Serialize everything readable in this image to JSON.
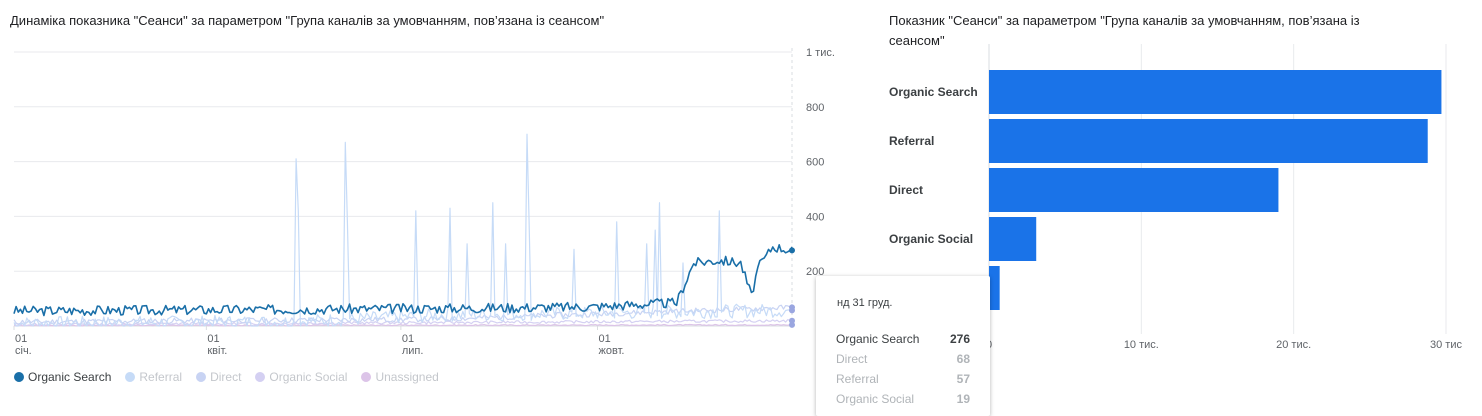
{
  "left_chart": {
    "title": "Динаміка показника \"Сеанси\" за параметром \"Група каналів за умовчанням, пов’язана із сеансом\""
  },
  "right_chart": {
    "title": "Показник \"Сеанси\" за параметром \"Група каналів за умовчанням, пов’язана із сеансом\""
  },
  "legend": [
    {
      "name": "Organic Search",
      "color": "#1a6fa8"
    },
    {
      "name": "Referral",
      "color": "#c6dbf7"
    },
    {
      "name": "Direct",
      "color": "#c8d3f3"
    },
    {
      "name": "Organic Social",
      "color": "#d4d0f2"
    },
    {
      "name": "Unassigned",
      "color": "#dcc4e8"
    }
  ],
  "tooltip": {
    "date": "нд 31 груд.",
    "rows": [
      {
        "label": "Organic Search",
        "value": "276"
      },
      {
        "label": "Direct",
        "value": "68"
      },
      {
        "label": "Referral",
        "value": "57"
      },
      {
        "label": "Organic Social",
        "value": "19"
      }
    ]
  },
  "chart_data": [
    {
      "type": "line",
      "title": "Динаміка показника \"Сеанси\" за параметром \"Група каналів за умовчанням, пов’язана із сеансом\"",
      "y_ticks": [
        "200",
        "400",
        "600",
        "800",
        "1 тис."
      ],
      "y_tick_values": [
        200,
        400,
        600,
        800,
        1000
      ],
      "ylim": [
        0,
        1000
      ],
      "x_ticks": [
        {
          "day": "01",
          "month": "січ."
        },
        {
          "day": "01",
          "month": "квіт."
        },
        {
          "day": "01",
          "month": "лип."
        },
        {
          "day": "01",
          "month": "жовт."
        }
      ],
      "x_tick_day_index": [
        0,
        90,
        181,
        273
      ],
      "num_days": 365,
      "series": [
        {
          "name": "Organic Search",
          "color": "#1a6fa8",
          "base": [
            [
              0,
              55
            ],
            [
              120,
              60
            ],
            [
              210,
              65
            ],
            [
              270,
              70
            ],
            [
              310,
              85
            ],
            [
              318,
              230
            ],
            [
              330,
              240
            ],
            [
              340,
              230
            ],
            [
              345,
              110
            ],
            [
              348,
              210
            ],
            [
              355,
              290
            ],
            [
              364,
              276
            ]
          ],
          "noise": 18,
          "seed": 3,
          "width": 1.6
        },
        {
          "name": "Referral",
          "color": "#c6dbf7",
          "base": [
            [
              0,
              10
            ],
            [
              130,
              15
            ],
            [
              200,
              40
            ],
            [
              364,
              57
            ]
          ],
          "noise": 25,
          "seed": 7,
          "width": 1.2,
          "spikes": [
            [
              132,
              610
            ],
            [
              133,
              420
            ],
            [
              155,
              670
            ],
            [
              156,
              380
            ],
            [
              188,
              420
            ],
            [
              204,
              430
            ],
            [
              212,
              300
            ],
            [
              224,
              450
            ],
            [
              230,
              300
            ],
            [
              240,
              700
            ],
            [
              241,
              380
            ],
            [
              262,
              280
            ],
            [
              282,
              380
            ],
            [
              296,
              300
            ],
            [
              300,
              350
            ],
            [
              302,
              450
            ],
            [
              313,
              230
            ],
            [
              330,
              420
            ]
          ]
        },
        {
          "name": "Direct",
          "color": "#c8d3f3",
          "base": [
            [
              0,
              15
            ],
            [
              200,
              25
            ],
            [
              364,
              68
            ]
          ],
          "noise": 10,
          "seed": 11,
          "width": 1.2
        },
        {
          "name": "Organic Social",
          "color": "#d4d0f2",
          "base": [
            [
              0,
              5
            ],
            [
              364,
              19
            ]
          ],
          "noise": 5,
          "seed": 13,
          "width": 1.2
        },
        {
          "name": "Unassigned",
          "color": "#dcc4e8",
          "base": [
            [
              0,
              2
            ],
            [
              364,
              4
            ]
          ],
          "noise": 2,
          "seed": 17,
          "width": 1.2
        }
      ]
    },
    {
      "type": "bar",
      "orientation": "horizontal",
      "title": "Показник \"Сеанси\" за параметром \"Група каналів за умовчанням, пов’язана із сеансом\"",
      "categories": [
        "Organic Search",
        "Referral",
        "Direct",
        "Organic Social",
        "Unassigned"
      ],
      "values": [
        29700,
        28800,
        19000,
        3100,
        700
      ],
      "x_ticks": [
        "0",
        "10 тис.",
        "20 тис.",
        "30 тис"
      ],
      "x_tick_values": [
        0,
        10000,
        20000,
        30000
      ],
      "xlim": [
        0,
        30000
      ],
      "color": "#1a73e8"
    }
  ]
}
